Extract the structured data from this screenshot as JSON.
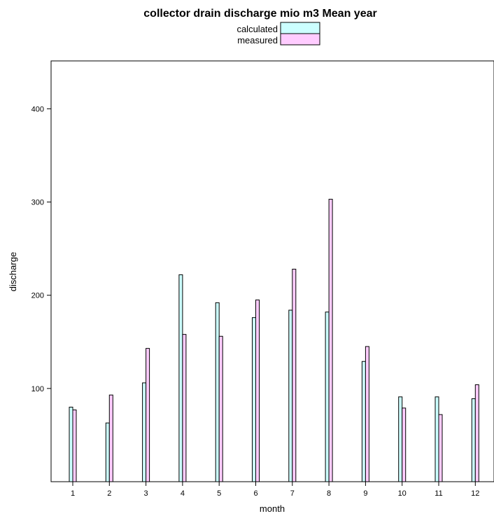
{
  "chart_data": {
    "type": "bar",
    "title": "collector drain discharge mio m3 Mean year",
    "xlabel": "month",
    "ylabel": "discharge",
    "categories": [
      "1",
      "2",
      "3",
      "4",
      "5",
      "6",
      "7",
      "8",
      "9",
      "10",
      "11",
      "12"
    ],
    "series": [
      {
        "name": "calculated",
        "color": "#ccffff",
        "values": [
          80,
          63,
          106,
          222,
          192,
          176,
          184,
          182,
          129,
          91,
          91,
          89
        ]
      },
      {
        "name": "measured",
        "color": "#ffccff",
        "values": [
          77,
          93,
          143,
          158,
          156,
          195,
          228,
          303,
          145,
          79,
          72,
          104
        ]
      }
    ],
    "yticks": [
      100,
      200,
      300,
      400
    ],
    "ylim": [
      0,
      450
    ],
    "legend_position": "top-center",
    "grid": false
  }
}
